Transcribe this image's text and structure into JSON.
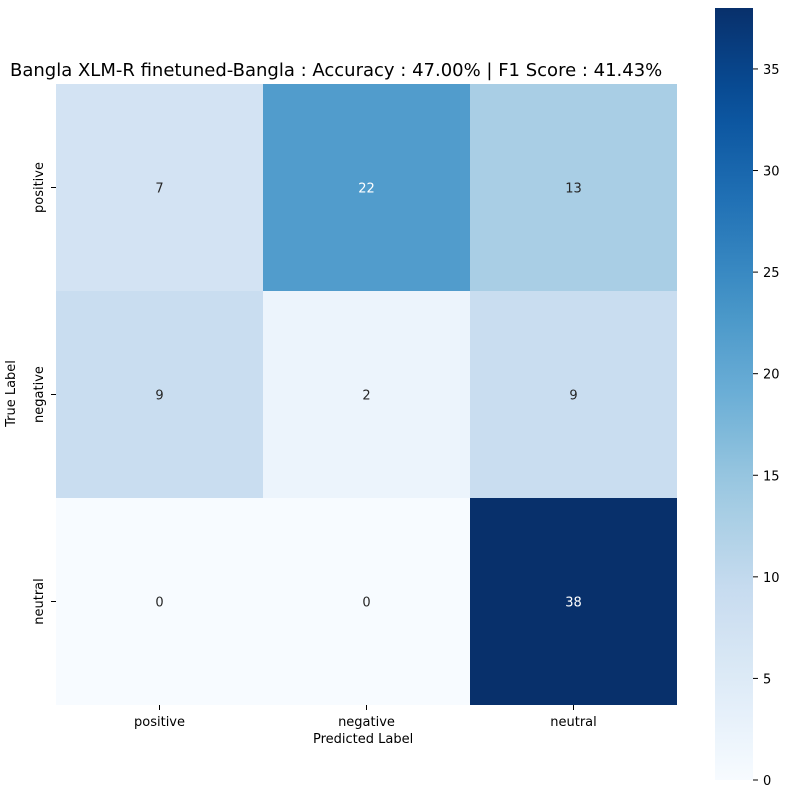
{
  "chart_data": {
    "type": "heatmap",
    "title": "Bangla XLM-R finetuned-Bangla : Accuracy : 47.00% | F1 Score : 41.43%",
    "xlabel": "Predicted Label",
    "ylabel": "True Label",
    "x_categories": [
      "positive",
      "negative",
      "neutral"
    ],
    "y_categories": [
      "positive",
      "negative",
      "neutral"
    ],
    "values": [
      [
        7,
        22,
        13
      ],
      [
        9,
        2,
        9
      ],
      [
        0,
        0,
        38
      ]
    ],
    "colormap": "Blues",
    "color_range": [
      0,
      38
    ],
    "colorbar_ticks": [
      0,
      5,
      10,
      15,
      20,
      25,
      30,
      35
    ],
    "colors": {
      "low": "#f7fbff",
      "high": "#08306b",
      "text_dark": "#262626",
      "text_light": "#ffffff"
    }
  }
}
